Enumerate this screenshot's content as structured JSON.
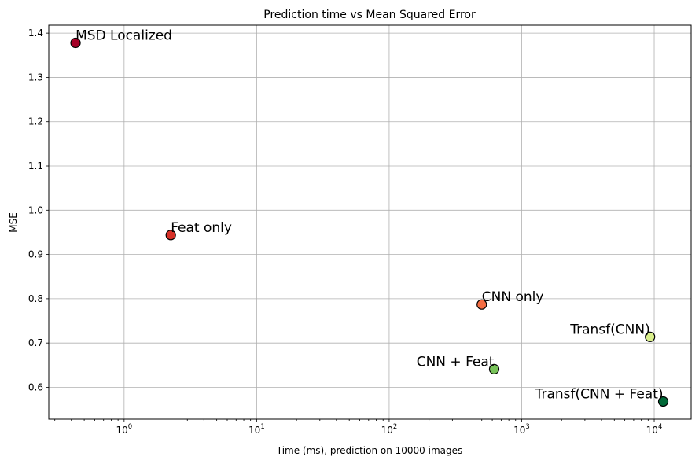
{
  "chart_data": {
    "type": "scatter",
    "title": "Prediction time vs Mean Squared Error",
    "xlabel": "Time (ms), prediction on 10000 images",
    "ylabel": "MSE",
    "xscale": "log",
    "xlim": [
      0.27,
      19000
    ],
    "ylim": [
      0.528,
      1.418
    ],
    "xticks": [
      {
        "value": 1,
        "base": "10",
        "exp": "0"
      },
      {
        "value": 10,
        "base": "10",
        "exp": "1"
      },
      {
        "value": 100,
        "base": "10",
        "exp": "2"
      },
      {
        "value": 1000,
        "base": "10",
        "exp": "3"
      },
      {
        "value": 10000,
        "base": "10",
        "exp": "4"
      }
    ],
    "yticks": [
      {
        "value": 0.6,
        "label": "0.6"
      },
      {
        "value": 0.7,
        "label": "0.7"
      },
      {
        "value": 0.8,
        "label": "0.8"
      },
      {
        "value": 0.9,
        "label": "0.9"
      },
      {
        "value": 1.0,
        "label": "1.0"
      },
      {
        "value": 1.1,
        "label": "1.1"
      },
      {
        "value": 1.2,
        "label": "1.2"
      },
      {
        "value": 1.3,
        "label": "1.3"
      },
      {
        "value": 1.4,
        "label": "1.4"
      }
    ],
    "grid": true,
    "points": [
      {
        "label": "MSD Localized",
        "x": 0.43,
        "y": 1.378,
        "color": "#a50026",
        "label_anchor": "start"
      },
      {
        "label": "Feat only",
        "x": 2.25,
        "y": 0.944,
        "color": "#d73027",
        "label_anchor": "start"
      },
      {
        "label": "CNN only",
        "x": 500,
        "y": 0.787,
        "color": "#f46d43",
        "label_anchor": "start"
      },
      {
        "label": "CNN + Feat",
        "x": 620,
        "y": 0.641,
        "color": "#78c35a",
        "label_anchor": "end"
      },
      {
        "label": "Transf(CNN)",
        "x": 9300,
        "y": 0.714,
        "color": "#d9ef8b",
        "label_anchor": "end"
      },
      {
        "label": "Transf(CNN + Feat)",
        "x": 11700,
        "y": 0.568,
        "color": "#006837",
        "label_anchor": "end"
      }
    ]
  }
}
